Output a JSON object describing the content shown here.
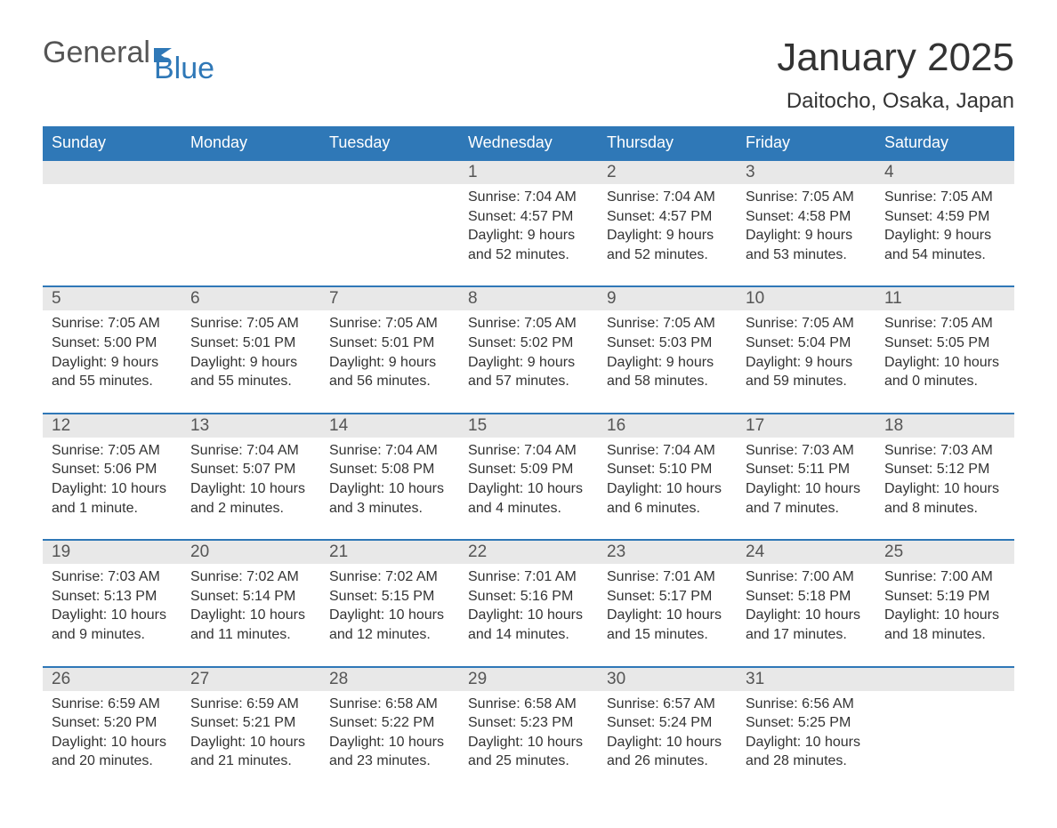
{
  "brand": {
    "word1": "General",
    "word2": "Blue",
    "color_general": "#555555",
    "color_blue": "#2f78b7",
    "flag_color": "#2f78b7"
  },
  "header": {
    "month_title": "January 2025",
    "location": "Daitocho, Osaka, Japan"
  },
  "colors": {
    "header_bg": "#2f78b7",
    "header_text": "#ffffff",
    "row_accent": "#2f78b7",
    "daynum_bg": "#e8e8e8",
    "body_text": "#333333",
    "page_bg": "#ffffff"
  },
  "weekdays": [
    "Sunday",
    "Monday",
    "Tuesday",
    "Wednesday",
    "Thursday",
    "Friday",
    "Saturday"
  ],
  "weeks": [
    [
      {
        "empty": true
      },
      {
        "empty": true
      },
      {
        "empty": true
      },
      {
        "day": "1",
        "sunrise": "Sunrise: 7:04 AM",
        "sunset": "Sunset: 4:57 PM",
        "dl1": "Daylight: 9 hours",
        "dl2": "and 52 minutes."
      },
      {
        "day": "2",
        "sunrise": "Sunrise: 7:04 AM",
        "sunset": "Sunset: 4:57 PM",
        "dl1": "Daylight: 9 hours",
        "dl2": "and 52 minutes."
      },
      {
        "day": "3",
        "sunrise": "Sunrise: 7:05 AM",
        "sunset": "Sunset: 4:58 PM",
        "dl1": "Daylight: 9 hours",
        "dl2": "and 53 minutes."
      },
      {
        "day": "4",
        "sunrise": "Sunrise: 7:05 AM",
        "sunset": "Sunset: 4:59 PM",
        "dl1": "Daylight: 9 hours",
        "dl2": "and 54 minutes."
      }
    ],
    [
      {
        "day": "5",
        "sunrise": "Sunrise: 7:05 AM",
        "sunset": "Sunset: 5:00 PM",
        "dl1": "Daylight: 9 hours",
        "dl2": "and 55 minutes."
      },
      {
        "day": "6",
        "sunrise": "Sunrise: 7:05 AM",
        "sunset": "Sunset: 5:01 PM",
        "dl1": "Daylight: 9 hours",
        "dl2": "and 55 minutes."
      },
      {
        "day": "7",
        "sunrise": "Sunrise: 7:05 AM",
        "sunset": "Sunset: 5:01 PM",
        "dl1": "Daylight: 9 hours",
        "dl2": "and 56 minutes."
      },
      {
        "day": "8",
        "sunrise": "Sunrise: 7:05 AM",
        "sunset": "Sunset: 5:02 PM",
        "dl1": "Daylight: 9 hours",
        "dl2": "and 57 minutes."
      },
      {
        "day": "9",
        "sunrise": "Sunrise: 7:05 AM",
        "sunset": "Sunset: 5:03 PM",
        "dl1": "Daylight: 9 hours",
        "dl2": "and 58 minutes."
      },
      {
        "day": "10",
        "sunrise": "Sunrise: 7:05 AM",
        "sunset": "Sunset: 5:04 PM",
        "dl1": "Daylight: 9 hours",
        "dl2": "and 59 minutes."
      },
      {
        "day": "11",
        "sunrise": "Sunrise: 7:05 AM",
        "sunset": "Sunset: 5:05 PM",
        "dl1": "Daylight: 10 hours",
        "dl2": "and 0 minutes."
      }
    ],
    [
      {
        "day": "12",
        "sunrise": "Sunrise: 7:05 AM",
        "sunset": "Sunset: 5:06 PM",
        "dl1": "Daylight: 10 hours",
        "dl2": "and 1 minute."
      },
      {
        "day": "13",
        "sunrise": "Sunrise: 7:04 AM",
        "sunset": "Sunset: 5:07 PM",
        "dl1": "Daylight: 10 hours",
        "dl2": "and 2 minutes."
      },
      {
        "day": "14",
        "sunrise": "Sunrise: 7:04 AM",
        "sunset": "Sunset: 5:08 PM",
        "dl1": "Daylight: 10 hours",
        "dl2": "and 3 minutes."
      },
      {
        "day": "15",
        "sunrise": "Sunrise: 7:04 AM",
        "sunset": "Sunset: 5:09 PM",
        "dl1": "Daylight: 10 hours",
        "dl2": "and 4 minutes."
      },
      {
        "day": "16",
        "sunrise": "Sunrise: 7:04 AM",
        "sunset": "Sunset: 5:10 PM",
        "dl1": "Daylight: 10 hours",
        "dl2": "and 6 minutes."
      },
      {
        "day": "17",
        "sunrise": "Sunrise: 7:03 AM",
        "sunset": "Sunset: 5:11 PM",
        "dl1": "Daylight: 10 hours",
        "dl2": "and 7 minutes."
      },
      {
        "day": "18",
        "sunrise": "Sunrise: 7:03 AM",
        "sunset": "Sunset: 5:12 PM",
        "dl1": "Daylight: 10 hours",
        "dl2": "and 8 minutes."
      }
    ],
    [
      {
        "day": "19",
        "sunrise": "Sunrise: 7:03 AM",
        "sunset": "Sunset: 5:13 PM",
        "dl1": "Daylight: 10 hours",
        "dl2": "and 9 minutes."
      },
      {
        "day": "20",
        "sunrise": "Sunrise: 7:02 AM",
        "sunset": "Sunset: 5:14 PM",
        "dl1": "Daylight: 10 hours",
        "dl2": "and 11 minutes."
      },
      {
        "day": "21",
        "sunrise": "Sunrise: 7:02 AM",
        "sunset": "Sunset: 5:15 PM",
        "dl1": "Daylight: 10 hours",
        "dl2": "and 12 minutes."
      },
      {
        "day": "22",
        "sunrise": "Sunrise: 7:01 AM",
        "sunset": "Sunset: 5:16 PM",
        "dl1": "Daylight: 10 hours",
        "dl2": "and 14 minutes."
      },
      {
        "day": "23",
        "sunrise": "Sunrise: 7:01 AM",
        "sunset": "Sunset: 5:17 PM",
        "dl1": "Daylight: 10 hours",
        "dl2": "and 15 minutes."
      },
      {
        "day": "24",
        "sunrise": "Sunrise: 7:00 AM",
        "sunset": "Sunset: 5:18 PM",
        "dl1": "Daylight: 10 hours",
        "dl2": "and 17 minutes."
      },
      {
        "day": "25",
        "sunrise": "Sunrise: 7:00 AM",
        "sunset": "Sunset: 5:19 PM",
        "dl1": "Daylight: 10 hours",
        "dl2": "and 18 minutes."
      }
    ],
    [
      {
        "day": "26",
        "sunrise": "Sunrise: 6:59 AM",
        "sunset": "Sunset: 5:20 PM",
        "dl1": "Daylight: 10 hours",
        "dl2": "and 20 minutes."
      },
      {
        "day": "27",
        "sunrise": "Sunrise: 6:59 AM",
        "sunset": "Sunset: 5:21 PM",
        "dl1": "Daylight: 10 hours",
        "dl2": "and 21 minutes."
      },
      {
        "day": "28",
        "sunrise": "Sunrise: 6:58 AM",
        "sunset": "Sunset: 5:22 PM",
        "dl1": "Daylight: 10 hours",
        "dl2": "and 23 minutes."
      },
      {
        "day": "29",
        "sunrise": "Sunrise: 6:58 AM",
        "sunset": "Sunset: 5:23 PM",
        "dl1": "Daylight: 10 hours",
        "dl2": "and 25 minutes."
      },
      {
        "day": "30",
        "sunrise": "Sunrise: 6:57 AM",
        "sunset": "Sunset: 5:24 PM",
        "dl1": "Daylight: 10 hours",
        "dl2": "and 26 minutes."
      },
      {
        "day": "31",
        "sunrise": "Sunrise: 6:56 AM",
        "sunset": "Sunset: 5:25 PM",
        "dl1": "Daylight: 10 hours",
        "dl2": "and 28 minutes."
      },
      {
        "empty": true
      }
    ]
  ]
}
